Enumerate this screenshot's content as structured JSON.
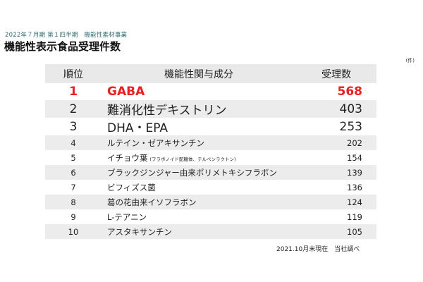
{
  "header": {
    "subtitle": "2022年７月期 第１四半期　機能性素材事業",
    "title": "機能性表示食品受理件数",
    "unit": "(件)"
  },
  "table": {
    "headers": {
      "rank": "順位",
      "ingredient": "機能性関与成分",
      "count": "受理数"
    },
    "rows": [
      {
        "rank": "1",
        "name": "GABA",
        "note": "",
        "count": "568"
      },
      {
        "rank": "2",
        "name": "難消化性デキストリン",
        "note": "",
        "count": "403"
      },
      {
        "rank": "3",
        "name": "DHA・EPA",
        "note": "",
        "count": "253"
      },
      {
        "rank": "4",
        "name": "ルテイン・ゼアキサンチン",
        "note": "",
        "count": "202"
      },
      {
        "rank": "5",
        "name": "イチョウ葉",
        "note": "(フラボノイド配糖体、テルペンラクトン)",
        "count": "154"
      },
      {
        "rank": "6",
        "name": "ブラックジンジャー由来ポリメトキシフラボン",
        "note": "",
        "count": "139"
      },
      {
        "rank": "7",
        "name": "ビフィズス菌",
        "note": "",
        "count": "136"
      },
      {
        "rank": "8",
        "name": "葛の花由来イソフラボン",
        "note": "",
        "count": "124"
      },
      {
        "rank": "9",
        "name": "L-テアニン",
        "note": "",
        "count": "119"
      },
      {
        "rank": "10",
        "name": "アスタキサンチン",
        "note": "",
        "count": "105"
      }
    ]
  },
  "footnote": "2021.10月末現在　当社調べ",
  "colors": {
    "highlight": "#e8201e",
    "row_alt_bg": "#ececec",
    "header_bg": "#e9e9e9",
    "subtitle": "#2e6f73"
  }
}
